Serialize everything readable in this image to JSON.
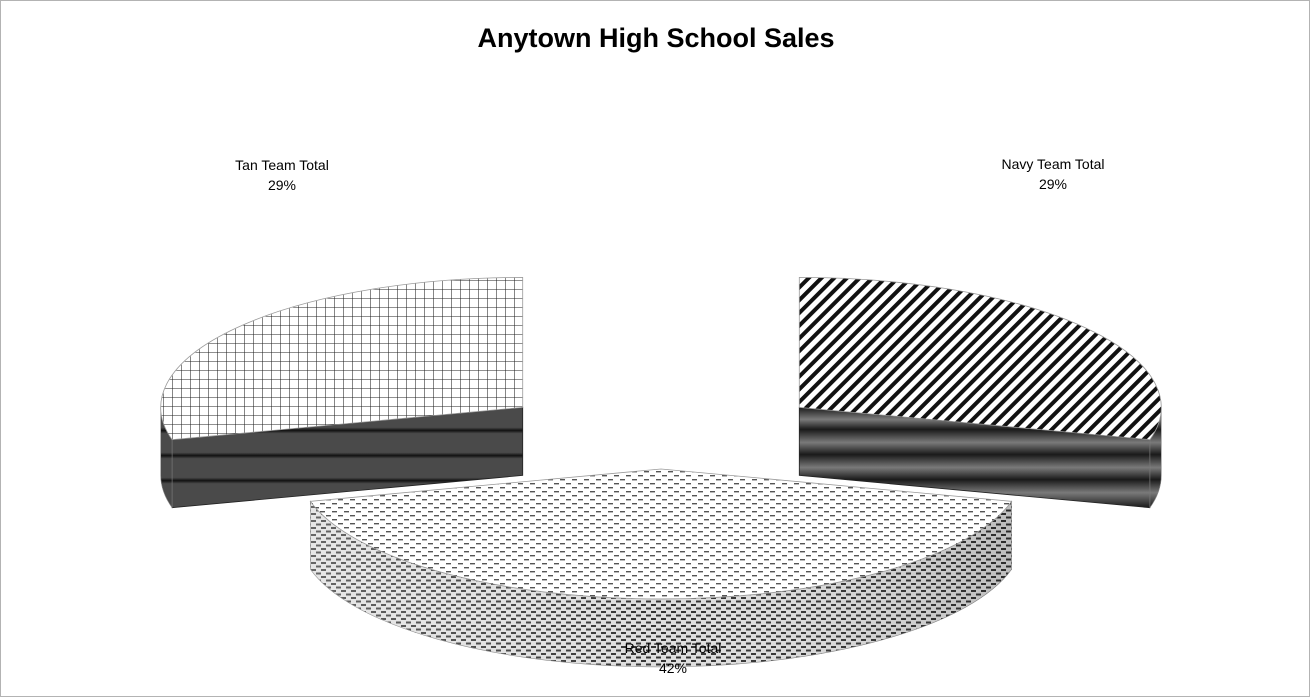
{
  "chart_data": {
    "type": "pie",
    "style": "3d-exploded",
    "title": "Anytown High School Sales",
    "categories": [
      "Red Team Total",
      "Navy Team Total",
      "Tan Team Total"
    ],
    "values": [
      42,
      29,
      29
    ],
    "value_format": "percent",
    "legend": "none",
    "data_labels": [
      {
        "name": "Red Team Total",
        "percent": "42%"
      },
      {
        "name": "Navy Team Total",
        "percent": "29%"
      },
      {
        "name": "Tan Team Total",
        "percent": "29%"
      }
    ]
  }
}
